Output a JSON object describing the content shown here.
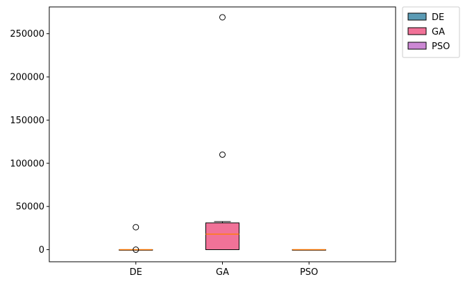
{
  "chart_data": {
    "type": "box",
    "categories": [
      "DE",
      "GA",
      "PSO"
    ],
    "ylim": [
      -14000,
      281000
    ],
    "yticks": [
      0,
      50000,
      100000,
      150000,
      200000,
      250000
    ],
    "ytick_labels": [
      "0",
      "50000",
      "100000",
      "150000",
      "200000",
      "250000"
    ],
    "series": [
      {
        "name": "DE",
        "color": "#5b9bb5",
        "whisker_low": 0,
        "q1": 0,
        "median": 0,
        "q3": 0,
        "whisker_high": 0,
        "outliers": [
          26000,
          0
        ]
      },
      {
        "name": "GA",
        "color": "#f17298",
        "whisker_low": 0,
        "q1": 0,
        "median": 18000,
        "q3": 31000,
        "whisker_high": 32500,
        "outliers": [
          110000,
          269000
        ]
      },
      {
        "name": "PSO",
        "color": "#cc88d4",
        "whisker_low": 0,
        "q1": 0,
        "median": 0,
        "q3": 0,
        "whisker_high": 0,
        "outliers": []
      }
    ],
    "median_color": "#ff7f0e",
    "legend": {
      "position": "outside-top-right",
      "entries": [
        "DE",
        "GA",
        "PSO"
      ]
    },
    "grid": false
  }
}
